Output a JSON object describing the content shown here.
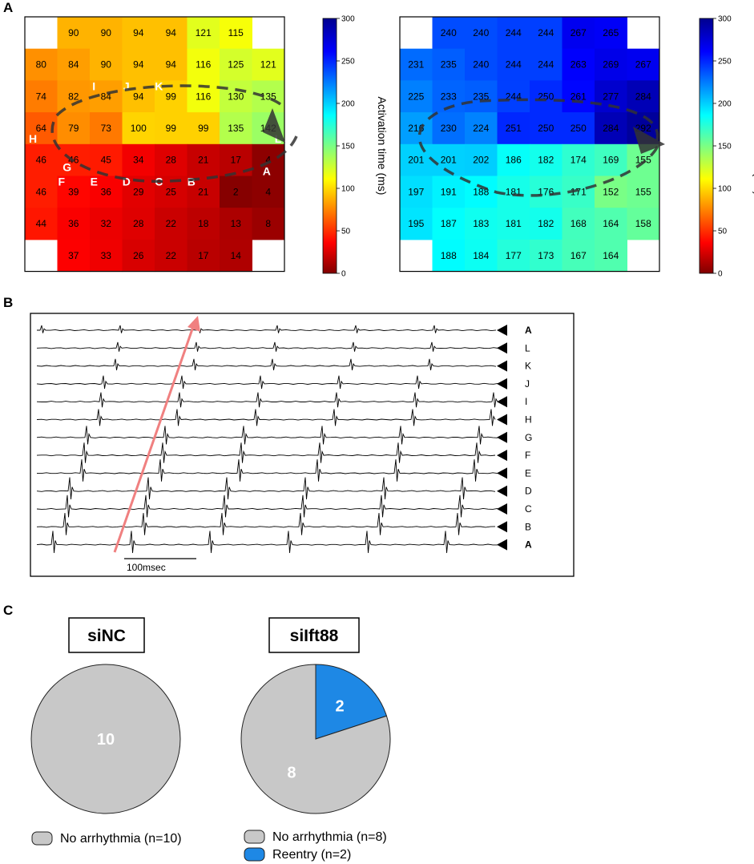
{
  "panels": {
    "A": "A",
    "B": "B",
    "C": "C"
  },
  "chart_data": [
    {
      "type": "heatmap",
      "panel": "A",
      "colorbar": {
        "label": "Activation time (ms)",
        "ticks": [
          0,
          50,
          100,
          150,
          200,
          250,
          300
        ],
        "range": [
          0,
          300
        ],
        "colormap": "jet-reversed (red = early, blue = late)"
      },
      "rows": [
        [
          null,
          90,
          90,
          94,
          94,
          121,
          115,
          null
        ],
        [
          80,
          84,
          90,
          94,
          94,
          116,
          125,
          121
        ],
        [
          74,
          82,
          84,
          94,
          99,
          116,
          130,
          135
        ],
        [
          64,
          79,
          73,
          100,
          99,
          99,
          135,
          142
        ],
        [
          46,
          46,
          45,
          34,
          28,
          21,
          17,
          4
        ],
        [
          46,
          39,
          36,
          29,
          25,
          21,
          2,
          4
        ],
        [
          44,
          36,
          32,
          28,
          22,
          18,
          13,
          8
        ],
        [
          null,
          37,
          33,
          26,
          22,
          17,
          14,
          null
        ]
      ],
      "points": [
        {
          "label": "A",
          "row": 4,
          "col": 7
        },
        {
          "label": "B",
          "row": 5,
          "col": 5
        },
        {
          "label": "C",
          "row": 5,
          "col": 4
        },
        {
          "label": "D",
          "row": 5,
          "col": 3
        },
        {
          "label": "E",
          "row": 5,
          "col": 2
        },
        {
          "label": "F",
          "row": 5,
          "col": 1
        },
        {
          "label": "G",
          "row": 4,
          "col": 1
        },
        {
          "label": "H",
          "row": 3,
          "col": 0
        },
        {
          "label": "I",
          "row": 2,
          "col": 2
        },
        {
          "label": "J",
          "row": 2,
          "col": 3
        },
        {
          "label": "K",
          "row": 2,
          "col": 4
        },
        {
          "label": "L",
          "row": 3,
          "col": 7
        }
      ]
    },
    {
      "type": "heatmap",
      "panel": "A",
      "colorbar": {
        "label": "Activation time (ms)",
        "ticks": [
          0,
          50,
          100,
          150,
          200,
          250,
          300
        ],
        "range": [
          0,
          300
        ],
        "colormap": "jet-reversed (red = early, blue = late)"
      },
      "rows": [
        [
          null,
          240,
          240,
          244,
          244,
          267,
          265,
          null
        ],
        [
          231,
          235,
          240,
          244,
          244,
          263,
          269,
          267
        ],
        [
          225,
          233,
          235,
          244,
          250,
          261,
          277,
          284
        ],
        [
          216,
          230,
          224,
          251,
          250,
          250,
          284,
          292
        ],
        [
          201,
          201,
          202,
          186,
          182,
          174,
          169,
          155
        ],
        [
          197,
          191,
          188,
          181,
          176,
          171,
          152,
          155
        ],
        [
          195,
          187,
          183,
          181,
          182,
          168,
          164,
          158
        ],
        [
          null,
          188,
          184,
          177,
          173,
          167,
          164,
          null
        ]
      ]
    },
    {
      "type": "line",
      "panel": "B",
      "series": [
        {
          "name": "A",
          "bold": true
        },
        {
          "name": "L"
        },
        {
          "name": "K"
        },
        {
          "name": "J"
        },
        {
          "name": "I"
        },
        {
          "name": "H"
        },
        {
          "name": "G"
        },
        {
          "name": "F"
        },
        {
          "name": "E"
        },
        {
          "name": "D"
        },
        {
          "name": "C"
        },
        {
          "name": "B"
        },
        {
          "name": "A",
          "bold": true
        }
      ],
      "scale_bar": "100msec",
      "arrow_color": "#F08080"
    },
    {
      "type": "pie",
      "panel": "C",
      "title": "siNC",
      "slices": [
        {
          "label": "No arrhythmia",
          "value": 10,
          "color": "#C8C8C8"
        }
      ]
    },
    {
      "type": "pie",
      "panel": "C",
      "title": "siIft88",
      "slices": [
        {
          "label": "Reentry",
          "value": 2,
          "color": "#1E88E5"
        },
        {
          "label": "No arrhythmia",
          "value": 8,
          "color": "#C8C8C8"
        }
      ]
    }
  ],
  "legends": {
    "left": [
      {
        "label": "No arrhythmia (n=10)",
        "color": "#C8C8C8"
      }
    ],
    "right": [
      {
        "label": "No arrhythmia (n=8)",
        "color": "#C8C8C8"
      },
      {
        "label": "Reentry (n=2)",
        "color": "#1E88E5"
      }
    ]
  }
}
